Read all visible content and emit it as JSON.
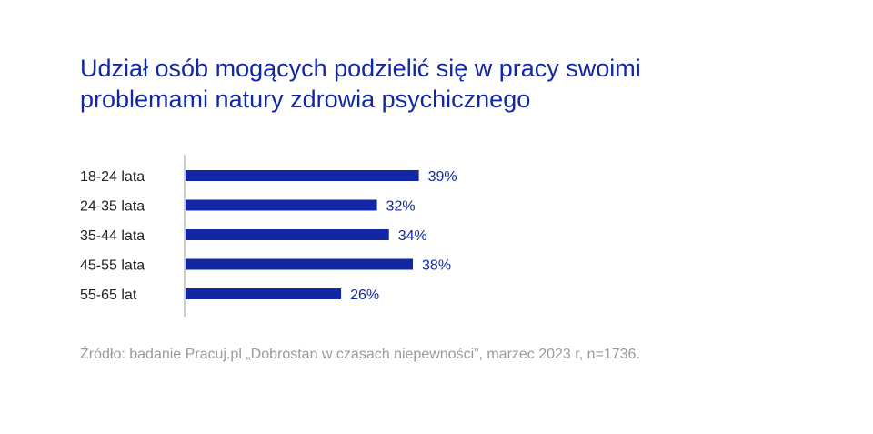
{
  "title_lines": [
    "Udział osób mogących podzielić się w pracy swoimi",
    "problemami natury zdrowia psychicznego"
  ],
  "source": "Źródło: badanie Pracuj.pl „Dobrostan w czasach niepewności”, marzec 2023 r, n=1736.",
  "colors": {
    "bar": "#1227a3",
    "title": "#1227a3",
    "axis": "#aaaaaa",
    "source": "#9a9a9a"
  },
  "chart_data": {
    "type": "bar",
    "orientation": "horizontal",
    "categories": [
      "18-24 lata",
      "24-35 lata",
      "35-44 lata",
      "45-55 lata",
      "55-65 lat"
    ],
    "values": [
      39,
      32,
      34,
      38,
      26
    ],
    "value_labels": [
      "39%",
      "32%",
      "34%",
      "38%",
      "26%"
    ],
    "unit": "%",
    "xlim": [
      0,
      100
    ],
    "grid": false,
    "legend": "none"
  }
}
